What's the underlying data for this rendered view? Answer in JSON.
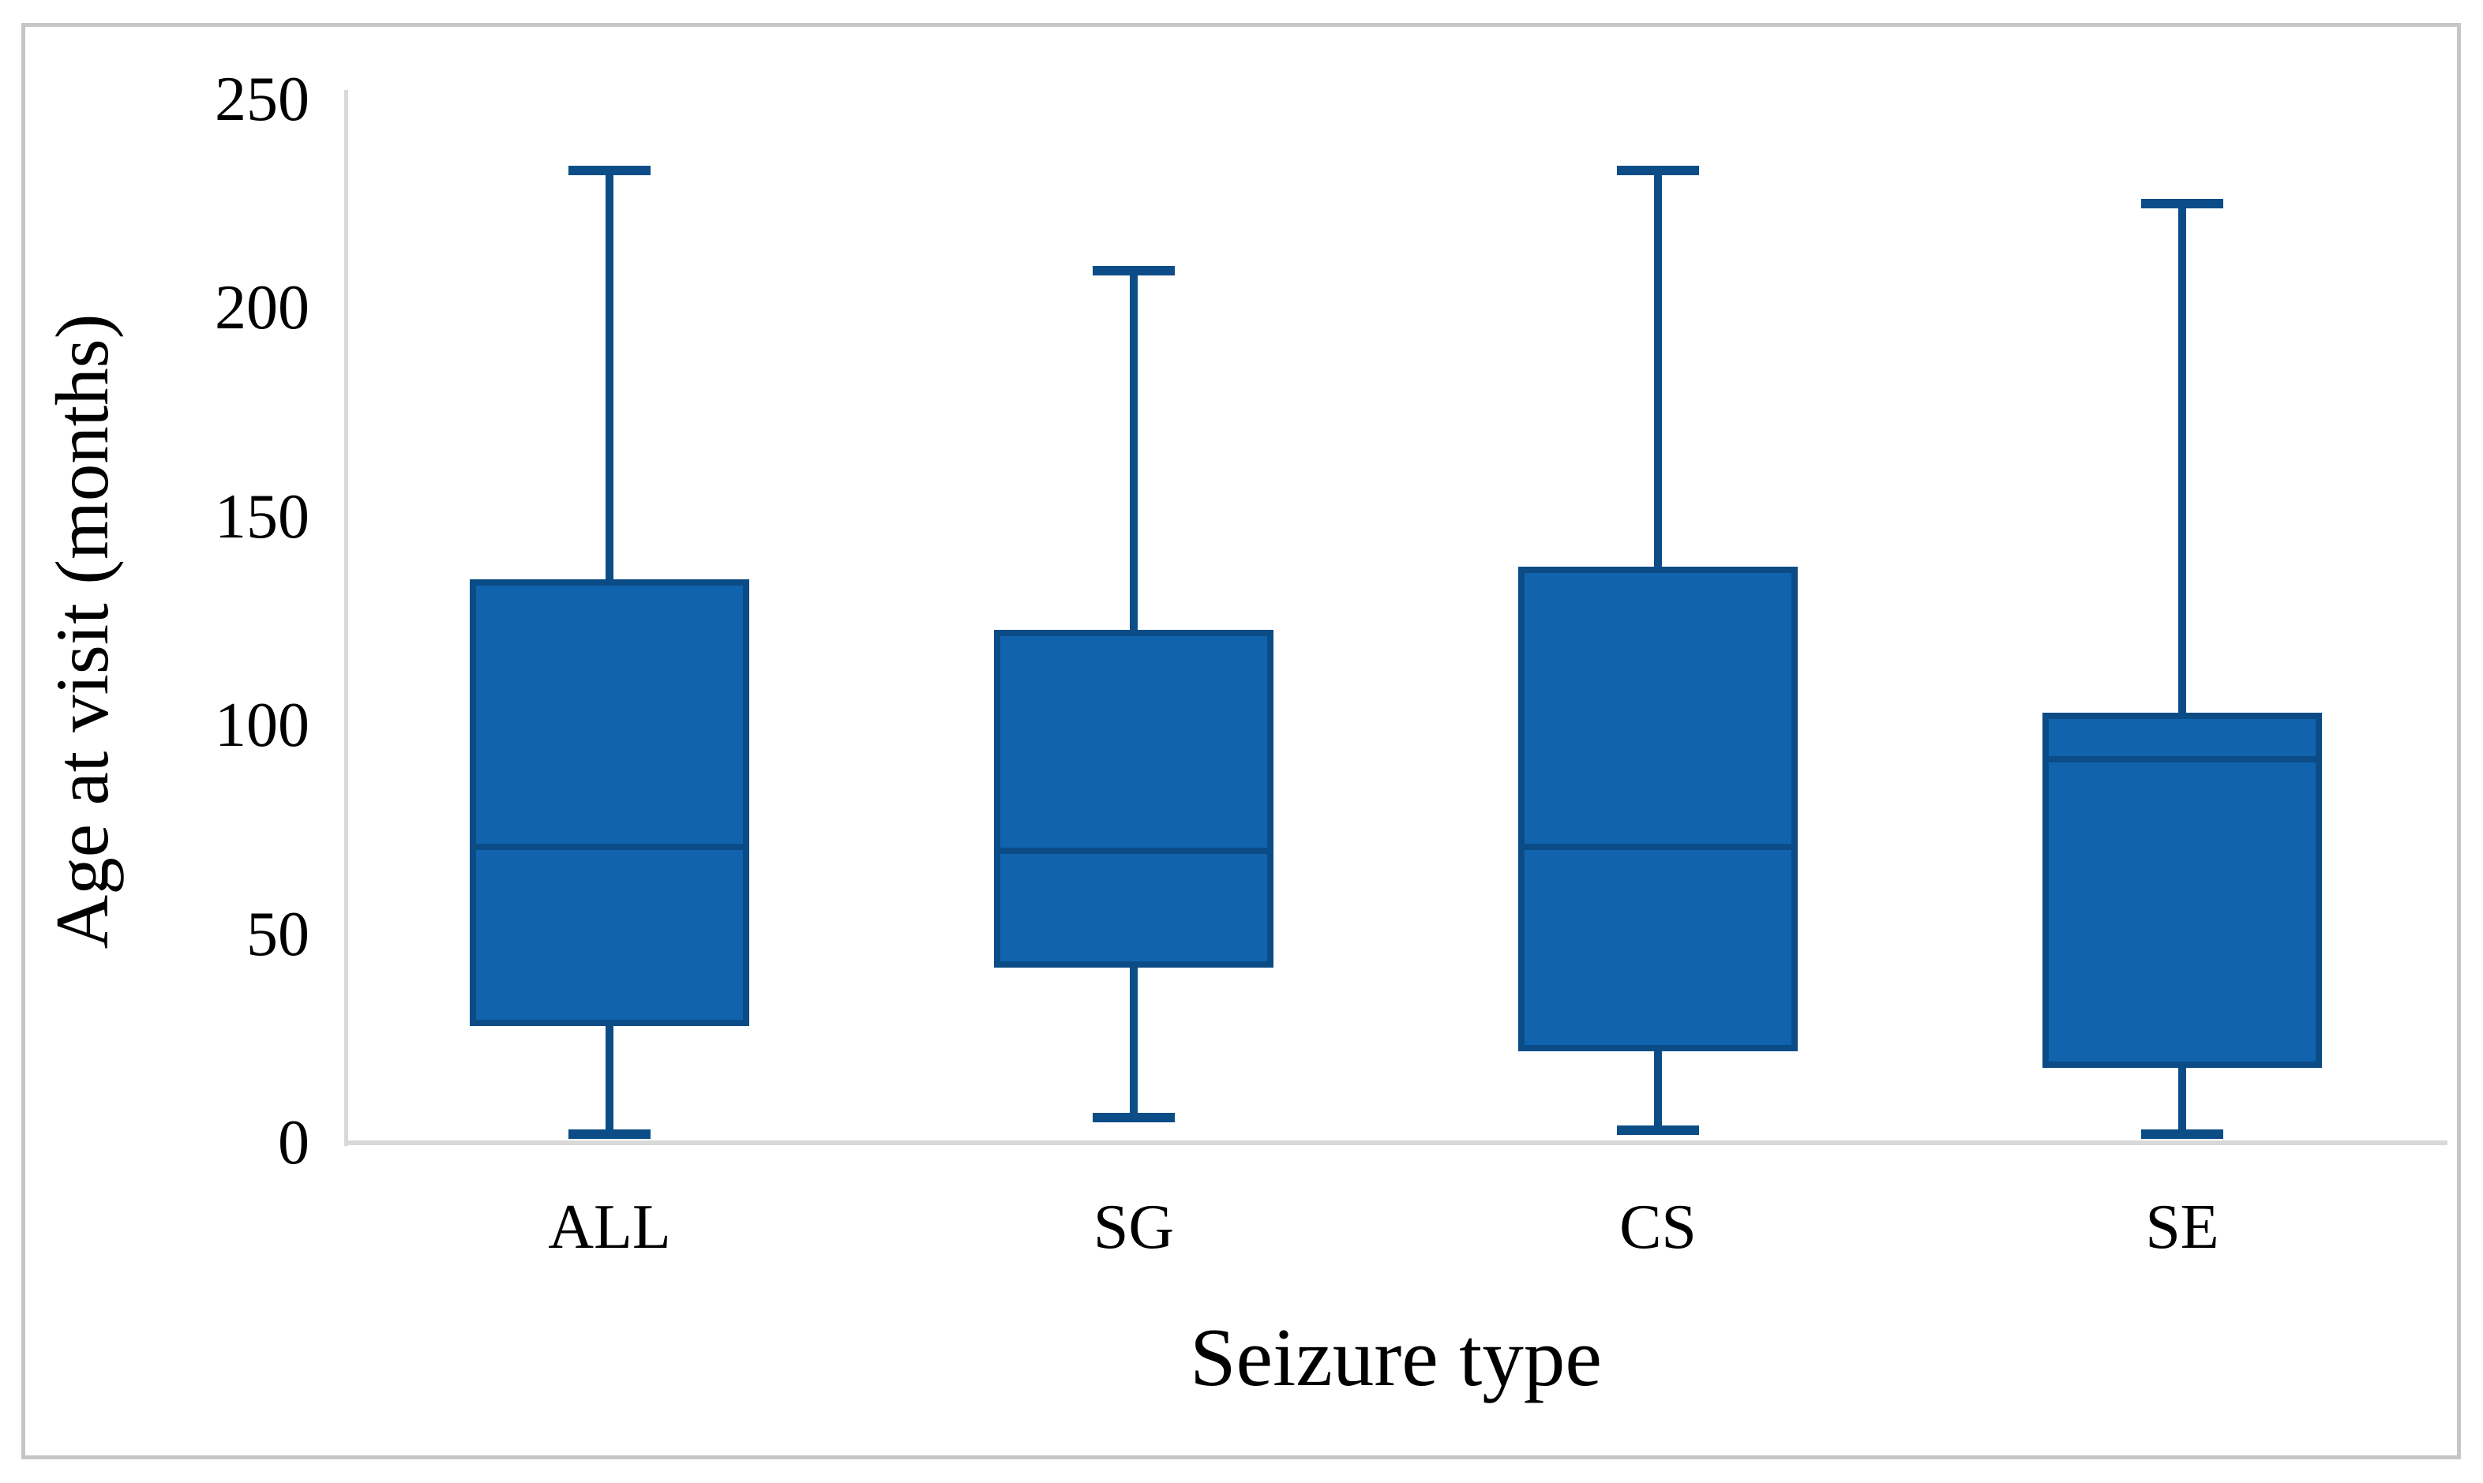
{
  "figure": {
    "background": "#ffffff",
    "frame_border_color": "#c6c6c6"
  },
  "chart_data": {
    "type": "boxplot",
    "title": "",
    "xlabel": "Seizure type",
    "ylabel": "Age at visit (months)",
    "categories": [
      "ALL",
      "SG",
      "CS",
      "SE"
    ],
    "y_ticks": [
      0,
      50,
      100,
      150,
      200,
      250
    ],
    "ylim": [
      0,
      250
    ],
    "grid": false,
    "legend": "none",
    "series": [
      {
        "category": "ALL",
        "min": 2,
        "q1": 28,
        "median": 71,
        "q3": 135,
        "max": 233
      },
      {
        "category": "SG",
        "min": 6,
        "q1": 42,
        "median": 70,
        "q3": 123,
        "max": 209
      },
      {
        "category": "CS",
        "min": 3,
        "q1": 22,
        "median": 71,
        "q3": 138,
        "max": 233
      },
      {
        "category": "SE",
        "min": 2,
        "q1": 18,
        "median": 92,
        "q3": 103,
        "max": 225
      }
    ],
    "colors": {
      "box_fill": "#1163ae",
      "box_border": "#0b4c87",
      "median": "#0b4c87",
      "whisker": "#0d4d87",
      "axis_line": "#d9d9d9",
      "text": "#000000"
    }
  }
}
